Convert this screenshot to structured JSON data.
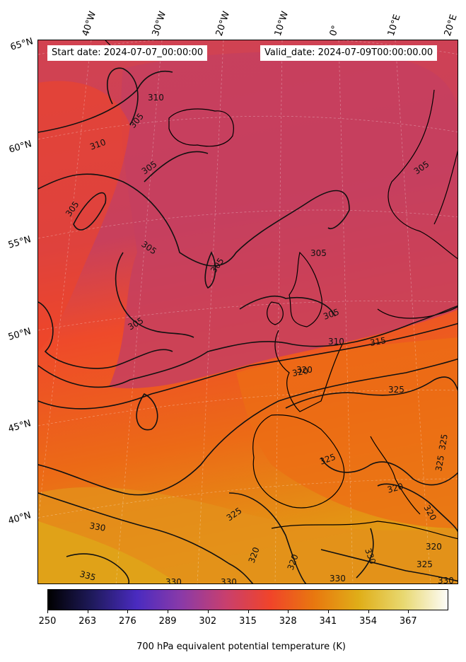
{
  "header": {
    "start_date": "Start date: 2024-07-07_00:00:00",
    "valid_date": "Valid_date: 2024-07-09T00:00:00.00"
  },
  "axes": {
    "lon_labels": [
      "40°W",
      "30°W",
      "20°W",
      "10°W",
      "0°",
      "10°E",
      "20°E"
    ],
    "lat_labels": [
      "65°N",
      "60°N",
      "55°N",
      "50°N",
      "45°N",
      "40°N"
    ]
  },
  "contour_labels": [
    "310",
    "305",
    "310",
    "305",
    "305",
    "305",
    "305",
    "305",
    "305",
    "305",
    "305",
    "310",
    "315",
    "320",
    "325",
    "325",
    "325",
    "325",
    "320",
    "320",
    "320",
    "325",
    "325",
    "330",
    "330",
    "320",
    "320",
    "330",
    "330",
    "335",
    "330",
    "330",
    "320"
  ],
  "colorbar": {
    "ticks": [
      "250",
      "263",
      "276",
      "289",
      "302",
      "315",
      "328",
      "341",
      "354",
      "367"
    ],
    "label": "700 hPa equivalent potential temperature (K)",
    "colormap": "CMRmap",
    "colors": [
      "#000000",
      "#1f1a5c",
      "#4a2bc0",
      "#8a3aa8",
      "#c83f6e",
      "#f0442a",
      "#e8780f",
      "#e0ae18",
      "#e8d870",
      "#fdfcf8"
    ]
  },
  "field_colors": {
    "cool": "#c5405f",
    "mid": "#f04528",
    "warm": "#ec6f14",
    "hot": "#e29a14"
  }
}
